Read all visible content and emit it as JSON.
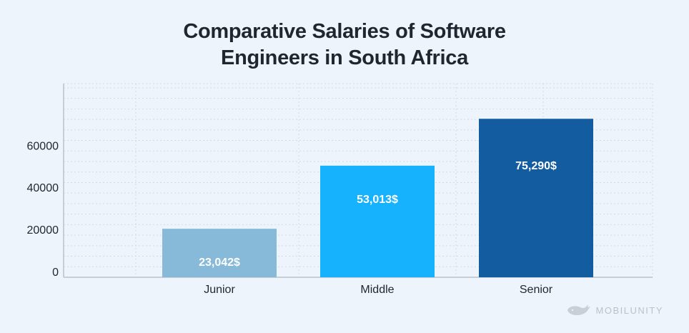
{
  "title_lines": [
    "Comparative Salaries of Software",
    "Engineers in South Africa"
  ],
  "brand": {
    "name": "MOBILUNITY",
    "logo_icon": "whale-icon"
  },
  "colors": {
    "background": "#eef4fb",
    "grid": "#d3dae3",
    "axis": "#b8c1cc",
    "text": "#1f2630",
    "bar_label": "#ffffff"
  },
  "chart_data": {
    "type": "bar",
    "title": "Comparative Salaries of Software Engineers in South Africa",
    "categories": [
      "Junior",
      "Middle",
      "Senior"
    ],
    "values": [
      23042,
      53013,
      75290
    ],
    "data_labels": [
      "23,042$",
      "53,013$",
      "75,290$"
    ],
    "bar_colors": [
      "#87b9d9",
      "#16b2fd",
      "#145ca0"
    ],
    "ylim": [
      0,
      92000
    ],
    "yticks": [
      0,
      20000,
      40000,
      60000
    ],
    "xlabel": "",
    "ylabel": "",
    "grid": true
  }
}
